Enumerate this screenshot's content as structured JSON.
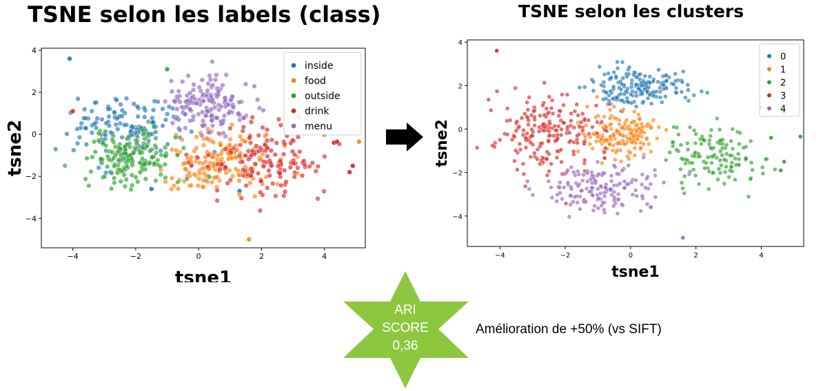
{
  "titles": {
    "left": "TSNE selon les labels (class)",
    "right": "TSNE selon les clusters"
  },
  "chart_data": [
    {
      "type": "scatter",
      "title": "TSNE selon les labels (class)",
      "xlabel": "tsne1",
      "ylabel": "tsne2",
      "xlim": [
        -5,
        5.3
      ],
      "ylim": [
        -5.4,
        4.1
      ],
      "xticks": [
        -4,
        -2,
        0,
        2,
        4
      ],
      "yticks": [
        -4,
        -2,
        0,
        2,
        4
      ],
      "legend_position": "top-right",
      "series": [
        {
          "name": "inside",
          "color": "#1f77b4",
          "center": [
            -2.3,
            0.3
          ],
          "spread": [
            1.2,
            1.0
          ],
          "count": 140,
          "points": [
            [
              -4.1,
              3.6
            ],
            [
              -1.5,
              -2.6
            ],
            [
              1.3,
              -2.7
            ]
          ]
        },
        {
          "name": "food",
          "color": "#ff7f0e",
          "center": [
            0.6,
            -1.3
          ],
          "spread": [
            1.1,
            1.0
          ],
          "count": 170,
          "points": [
            [
              1.6,
              -5.0
            ],
            [
              5.1,
              -0.35
            ]
          ]
        },
        {
          "name": "outside",
          "color": "#2ca02c",
          "center": [
            -2.0,
            -1.1
          ],
          "spread": [
            1.0,
            0.9
          ],
          "count": 160,
          "points": [
            [
              -1.0,
              3.1
            ]
          ]
        },
        {
          "name": "drink",
          "color": "#d62728",
          "center": [
            2.0,
            -1.3
          ],
          "spread": [
            1.3,
            1.2
          ],
          "count": 140,
          "points": [
            [
              4.8,
              -1.8
            ],
            [
              4.9,
              -1.5
            ],
            [
              4.3,
              -0.4
            ],
            [
              4.4,
              -0.35
            ],
            [
              -4.0,
              1.1
            ]
          ]
        },
        {
          "name": "menu",
          "color": "#9467bd",
          "center": [
            0.4,
            1.4
          ],
          "spread": [
            0.9,
            0.9
          ],
          "count": 150,
          "points": []
        }
      ]
    },
    {
      "type": "scatter",
      "title": "TSNE selon les clusters",
      "xlabel": "tsne1",
      "ylabel": "tsne2",
      "xlim": [
        -5,
        5.3
      ],
      "ylim": [
        -5.4,
        4.1
      ],
      "xticks": [
        -4,
        -2,
        0,
        2,
        4
      ],
      "yticks": [
        -4,
        -2,
        0,
        2,
        4
      ],
      "legend_position": "top-right",
      "series": [
        {
          "name": "0",
          "color": "#1f77b4",
          "center": [
            0.3,
            1.9
          ],
          "spread": [
            1.0,
            0.6
          ],
          "count": 170,
          "points": []
        },
        {
          "name": "1",
          "color": "#ff7f0e",
          "center": [
            -0.3,
            -0.2
          ],
          "spread": [
            0.8,
            0.7
          ],
          "count": 170,
          "points": []
        },
        {
          "name": "2",
          "color": "#2ca02c",
          "center": [
            2.5,
            -1.2
          ],
          "spread": [
            0.9,
            1.0
          ],
          "count": 130,
          "points": [
            [
              4.6,
              -1.9
            ],
            [
              4.7,
              -1.5
            ],
            [
              5.2,
              -0.35
            ],
            [
              4.3,
              -0.4
            ],
            [
              4.7,
              0.8
            ],
            [
              4.0,
              1.0
            ]
          ]
        },
        {
          "name": "3",
          "color": "#d62728",
          "center": [
            -2.6,
            -0.2
          ],
          "spread": [
            1.1,
            1.3
          ],
          "count": 190,
          "points": [
            [
              -4.1,
              3.6
            ]
          ]
        },
        {
          "name": "4",
          "color": "#9467bd",
          "center": [
            -0.8,
            -2.8
          ],
          "spread": [
            1.1,
            0.7
          ],
          "count": 150,
          "points": [
            [
              1.6,
              -5.0
            ]
          ]
        }
      ]
    }
  ],
  "arrow": {
    "color": "#000000"
  },
  "badge": {
    "color": "#8dc63f",
    "line1": "ARI",
    "line2": "SCORE",
    "line3": "0,36"
  },
  "improvement_text": "Amélioration de +50% (vs SIFT)"
}
